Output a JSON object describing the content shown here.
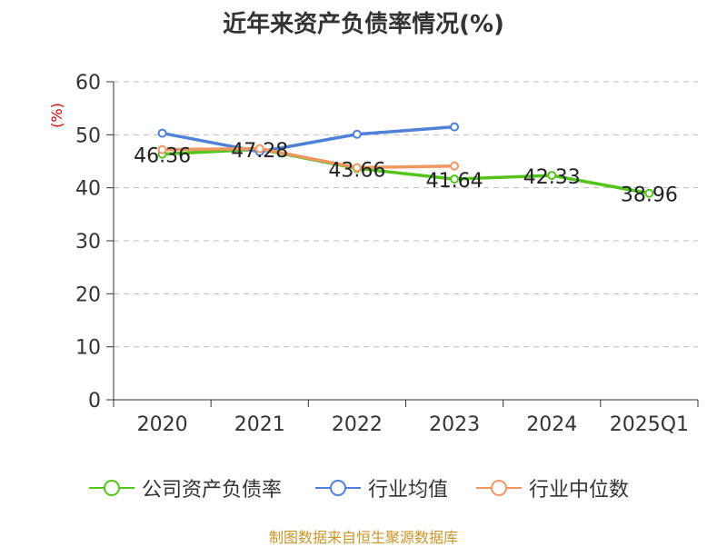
{
  "title": "近年来资产负债率情况(%)",
  "source": "制图数据来自恒生聚源数据库",
  "chart_data": {
    "type": "line",
    "title": "近年来资产负债率情况(%)",
    "ylabel": "(%)",
    "xlabel": "",
    "categories": [
      "2020",
      "2021",
      "2022",
      "2023",
      "2024",
      "2025Q1"
    ],
    "ylim": [
      0,
      60
    ],
    "yticks": [
      0,
      10,
      20,
      30,
      40,
      50,
      60
    ],
    "grid": true,
    "legend": "bottom",
    "series": [
      {
        "name": "公司资产负债率",
        "color": "#52c41a",
        "values": [
          46.36,
          47.28,
          43.66,
          41.64,
          42.33,
          38.96
        ],
        "labels": [
          "46.36",
          "47.28",
          "43.66",
          "41.64",
          "42.33",
          "38.96"
        ]
      },
      {
        "name": "行业均值",
        "color": "#4f81d6",
        "values": [
          50.3,
          46.8,
          50.1,
          51.5,
          null,
          null
        ]
      },
      {
        "name": "行业中位数",
        "color": "#f09660",
        "values": [
          47.2,
          47.4,
          43.8,
          44.1,
          null,
          null
        ]
      }
    ]
  }
}
